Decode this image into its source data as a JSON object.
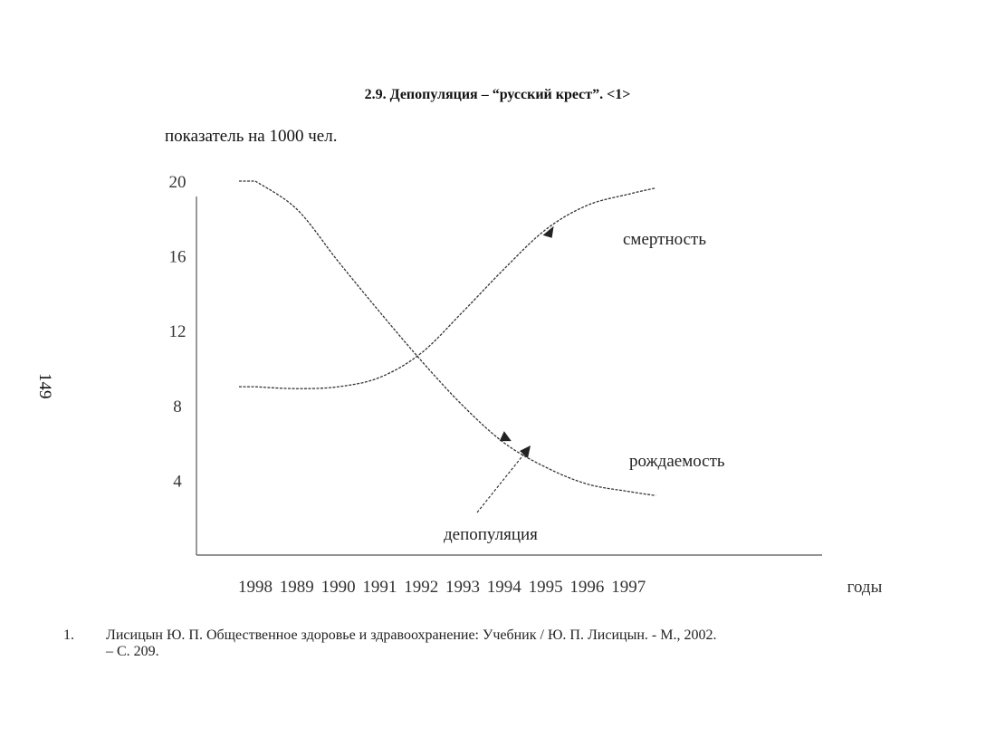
{
  "page": {
    "title": "2.9. Депопуляция – “русский крест”. <1>",
    "unit_label": "показатель на 1000 чел.",
    "page_number": "149",
    "footnote": {
      "number": "1.",
      "line1": "Лисицын Ю. П. Общественное здоровье и здравоохранение: Учебник / Ю. П. Лисицын. - М., 2002.",
      "line2": "– С. 209."
    }
  },
  "chart_data": {
    "type": "line",
    "categories": [
      "1998",
      "1989",
      "1990",
      "1991",
      "1992",
      "1993",
      "1994",
      "1995",
      "1996",
      "1997"
    ],
    "x_axis_name": "годы",
    "yticks": [
      "20",
      "16",
      "12",
      "8",
      "4"
    ],
    "ylim": [
      0,
      21
    ],
    "grid": false,
    "series": [
      {
        "name": "смертность",
        "values": [
          9.0,
          8.9,
          9.0,
          9.5,
          10.8,
          13.0,
          15.3,
          17.4,
          18.7,
          19.3
        ],
        "color": "#333333"
      },
      {
        "name": "рождаемость",
        "values": [
          20.0,
          18.5,
          15.7,
          13.0,
          10.4,
          8.0,
          6.0,
          4.7,
          3.8,
          3.4
        ],
        "color": "#333333"
      }
    ],
    "annotations": [
      {
        "text": "депопуляция"
      }
    ]
  }
}
